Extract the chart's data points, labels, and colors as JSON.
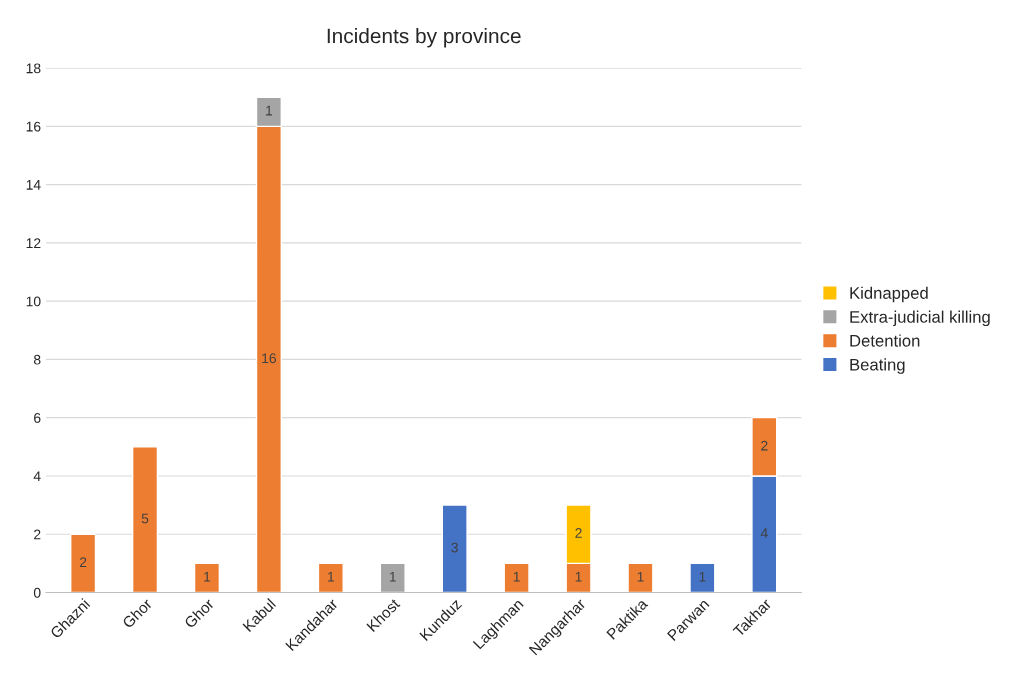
{
  "chart_data": {
    "type": "bar",
    "title": "Incidents by province",
    "stacked": true,
    "categories": [
      "Ghazni",
      "Ghor",
      "Ghor",
      "Kabul",
      "Kandahar",
      "Khost",
      "Kunduz",
      "Laghman",
      "Nangarhar",
      "Paktika",
      "Parwan",
      "Takhar"
    ],
    "series": [
      {
        "name": "Beating",
        "color": "#4472c4",
        "values": [
          null,
          null,
          null,
          null,
          null,
          null,
          3,
          null,
          null,
          null,
          1,
          4
        ]
      },
      {
        "name": "Detention",
        "color": "#ed7d31",
        "values": [
          2,
          5,
          1,
          16,
          1,
          null,
          null,
          1,
          1,
          1,
          null,
          2
        ]
      },
      {
        "name": "Extra-judicial killing",
        "color": "#a5a5a5",
        "values": [
          null,
          null,
          null,
          1,
          null,
          1,
          null,
          null,
          null,
          null,
          null,
          null
        ]
      },
      {
        "name": "Kidnapped",
        "color": "#ffc000",
        "values": [
          null,
          null,
          null,
          null,
          null,
          null,
          null,
          null,
          2,
          null,
          null,
          null
        ]
      }
    ],
    "ylim": [
      0,
      18
    ],
    "yticks": [
      0,
      2,
      4,
      6,
      8,
      10,
      12,
      14,
      16,
      18
    ],
    "grid": "y",
    "legend": "right",
    "data_labels": true
  }
}
